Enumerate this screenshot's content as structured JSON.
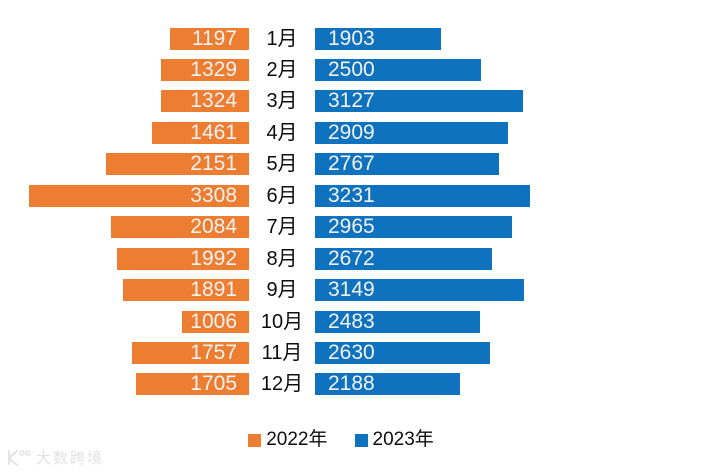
{
  "chart_data": {
    "type": "bar",
    "variant": "diverging-tornado-horizontal",
    "categories": [
      "1月",
      "2月",
      "3月",
      "4月",
      "5月",
      "6月",
      "7月",
      "8月",
      "9月",
      "10月",
      "11月",
      "12月"
    ],
    "series": [
      {
        "name": "2022年",
        "side": "left",
        "color": "#ED7D31",
        "values": [
          1197,
          1329,
          1324,
          1461,
          2151,
          3308,
          2084,
          1992,
          1891,
          1006,
          1757,
          1705
        ]
      },
      {
        "name": "2023年",
        "side": "right",
        "color": "#0F72BE",
        "values": [
          1903,
          2500,
          3127,
          2909,
          2767,
          3231,
          2965,
          2672,
          3149,
          2483,
          2630,
          2188
        ]
      }
    ],
    "value_labels": "inside-bar-white",
    "value_label_color": "#F2F2F2",
    "axis_max": 3308,
    "grid": false,
    "legend_position": "bottom-center",
    "title": ""
  },
  "legend": {
    "items": [
      {
        "label": "2022年",
        "color": "#ED7D31"
      },
      {
        "label": "2023年",
        "color": "#0F72BE"
      }
    ]
  },
  "watermark": {
    "logo_icon": "dashu-kuajing-logo",
    "text": "大数跨境"
  }
}
